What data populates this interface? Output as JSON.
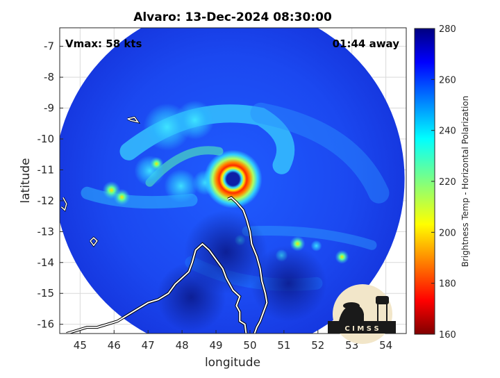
{
  "title": "Alvaro: 13-Dec-2024 08:30:00",
  "vmax_label": "Vmax: 58 kts",
  "time_away_label": "01:44 away",
  "axes": {
    "xlabel": "longitude",
    "ylabel": "latitude",
    "xlim": [
      44.4,
      54.6
    ],
    "ylim": [
      -16.3,
      -6.4
    ],
    "xticks": [
      45,
      46,
      47,
      48,
      49,
      50,
      51,
      52,
      53,
      54
    ],
    "yticks": [
      -7,
      -8,
      -9,
      -10,
      -11,
      -12,
      -13,
      -14,
      -15,
      -16
    ],
    "grid": true
  },
  "colorbar": {
    "label": "Brightness Temp - Horizontal Polarization",
    "min": 160,
    "max": 280,
    "ticks": [
      280,
      260,
      240,
      220,
      200,
      180,
      160
    ]
  },
  "storm": {
    "name": "Alvaro",
    "center_lon": 49.5,
    "center_lat": -11.3,
    "swath_center_lon": 49.4,
    "swath_center_lat": -11.3
  },
  "logo": {
    "text": "C I M S S",
    "name": "cimss-logo"
  },
  "chart_data": {
    "type": "heatmap",
    "title": "Alvaro: 13-Dec-2024 08:30:00",
    "xlabel": "longitude",
    "ylabel": "latitude",
    "xlim": [
      44.4,
      54.6
    ],
    "ylim": [
      -16.3,
      -6.4
    ],
    "color_scale": [
      160,
      280
    ],
    "colorbar_label": "Brightness Temp - Horizontal Polarization"
  }
}
